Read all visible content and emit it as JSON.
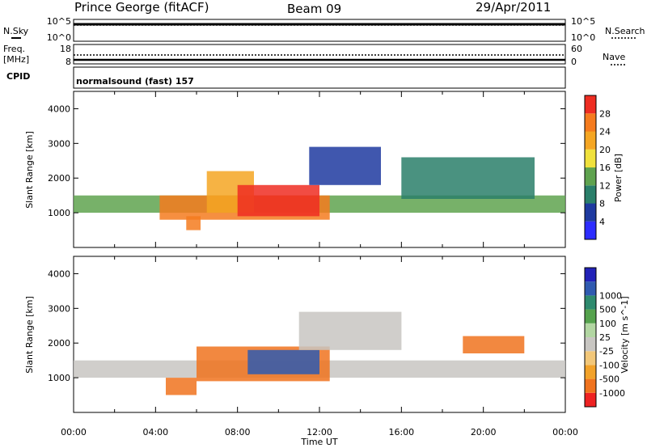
{
  "header": {
    "station": "Prince George (fitACF)",
    "beam": "Beam 09",
    "date": "29/Apr/2011"
  },
  "side_labels": {
    "nsky": "N.Sky",
    "nsearch": "N.Search",
    "freq": "Freq.",
    "mhz": "[MHz]",
    "nave": "Nave",
    "cpid": "CPID",
    "noise_top_tick": "10^5",
    "noise_bot_tick": "10^0",
    "noise_top_tick_r": "10^5",
    "noise_bot_tick_r": "10^0",
    "freq_top_tick": "18",
    "freq_bot_tick": "8",
    "nave_top_tick": "60",
    "nave_bot_tick": "0"
  },
  "cpid_text": "normalsound (fast) 157",
  "xaxis": {
    "title": "Time UT",
    "ticks": [
      "00:00",
      "04:00",
      "08:00",
      "12:00",
      "16:00",
      "20:00",
      "00:00"
    ]
  },
  "colors": {
    "power": [
      "#2d2dff",
      "#1e3aa0",
      "#2a7f6a",
      "#5fa34f",
      "#f0e13c",
      "#f5a623",
      "#f57b1e",
      "#ee2d22"
    ],
    "velocity": [
      "#ee2222",
      "#f0731e",
      "#f2a22a",
      "#f2c779",
      "#c8c6c2",
      "#b2d6a2",
      "#55a24d",
      "#2e8a6e",
      "#2f5ab0",
      "#2222b8"
    ]
  },
  "chart_data": [
    {
      "type": "heatmap",
      "title": "",
      "ylabel": "Slant Range [km]",
      "yticks": [
        "1000",
        "2000",
        "3000",
        "4000"
      ],
      "ylim": [
        0,
        4500
      ],
      "xlim": [
        "00:00",
        "24:00"
      ],
      "colorbar": {
        "label": "Power [dB]",
        "ticks": [
          "4",
          "8",
          "12",
          "16",
          "20",
          "24",
          "28"
        ],
        "range": [
          0,
          32
        ]
      },
      "bands": [
        {
          "t0": 0.0,
          "t1": 24.0,
          "r0": 1000,
          "r1": 1500,
          "level": 12
        },
        {
          "t0": 4.2,
          "t1": 12.5,
          "r0": 800,
          "r1": 1500,
          "level": 26
        },
        {
          "t0": 6.5,
          "t1": 8.8,
          "r0": 1000,
          "r1": 2200,
          "level": 22
        },
        {
          "t0": 8.0,
          "t1": 12.0,
          "r0": 900,
          "r1": 1800,
          "level": 28
        },
        {
          "t0": 11.5,
          "t1": 15.0,
          "r0": 1800,
          "r1": 2900,
          "level": 6
        },
        {
          "t0": 16.0,
          "t1": 22.5,
          "r0": 1400,
          "r1": 2600,
          "level": 8
        },
        {
          "t0": 5.5,
          "t1": 6.2,
          "r0": 500,
          "r1": 900,
          "level": 24
        }
      ]
    },
    {
      "type": "heatmap",
      "title": "",
      "ylabel": "Slant Range [km]",
      "yticks": [
        "1000",
        "2000",
        "3000",
        "4000"
      ],
      "ylim": [
        0,
        4500
      ],
      "xlim": [
        "00:00",
        "24:00"
      ],
      "colorbar": {
        "label": "Velocity [m s^-1]",
        "ticks": [
          "1000",
          "500",
          "100",
          "25",
          "-25",
          "-100",
          "-500",
          "-1000"
        ]
      },
      "bands": [
        {
          "t0": 0.0,
          "t1": 24.0,
          "r0": 1000,
          "r1": 1500,
          "level": 0
        },
        {
          "t0": 6.0,
          "t1": 12.5,
          "r0": 900,
          "r1": 1900,
          "level": -150
        },
        {
          "t0": 8.5,
          "t1": 12.0,
          "r0": 1100,
          "r1": 1800,
          "level": 600
        },
        {
          "t0": 4.5,
          "t1": 6.0,
          "r0": 500,
          "r1": 1000,
          "level": -300
        },
        {
          "t0": 11.0,
          "t1": 16.0,
          "r0": 1800,
          "r1": 2900,
          "level": 0
        },
        {
          "t0": 19.0,
          "t1": 22.0,
          "r0": 1700,
          "r1": 2200,
          "level": -150
        }
      ]
    }
  ]
}
